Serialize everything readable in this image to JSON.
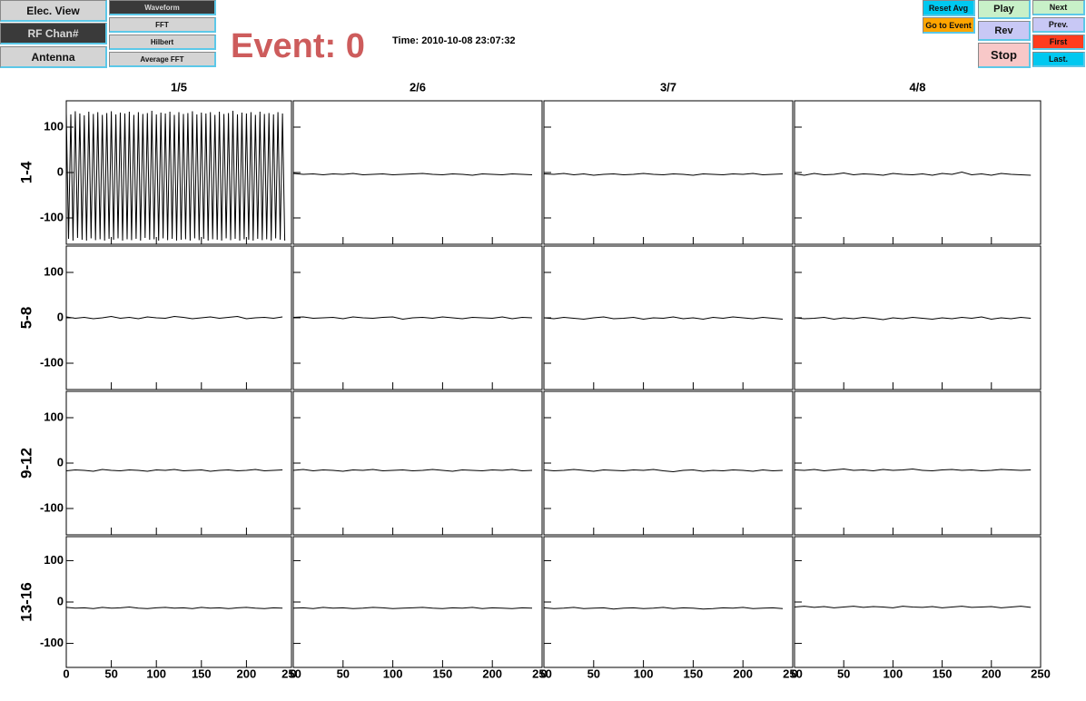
{
  "controls": {
    "view_buttons": [
      "Elec. View",
      "RF Chan#",
      "Antenna"
    ],
    "plot_buttons": [
      "Waveform",
      "FFT",
      "Hilbert",
      "Average FFT"
    ],
    "event_label": "Event: 0",
    "time_label": "Time: 2010-10-08 23:07:32",
    "avg_buttons": [
      "Reset Avg",
      "Go to Event"
    ],
    "play_buttons": [
      "Play",
      "Rev",
      "Stop"
    ],
    "nav_buttons": [
      "Next",
      "Prev.",
      "First",
      "Last."
    ]
  },
  "grid": {
    "columns": [
      "1/5",
      "2/6",
      "3/7",
      "4/8"
    ],
    "rows": [
      "1-4",
      "5-8",
      "9-12",
      "13-16"
    ]
  },
  "chart_data": [
    {
      "type": "line",
      "xlim": [
        0,
        250
      ],
      "ylim": [
        -158,
        158
      ],
      "xticks": [
        0,
        50,
        100,
        150,
        200,
        250
      ],
      "yticks": [
        -100,
        0,
        100
      ],
      "x": [
        0,
        2.5,
        5,
        7.5,
        10,
        12.5,
        15,
        17.5,
        20,
        22.5,
        25,
        27.5,
        30,
        32.5,
        35,
        37.5,
        40,
        42.5,
        45,
        47.5,
        50,
        52.5,
        55,
        57.5,
        60,
        62.5,
        65,
        67.5,
        70,
        72.5,
        75,
        77.5,
        80,
        82.5,
        85,
        87.5,
        90,
        92.5,
        95,
        97.5,
        100,
        102.5,
        105,
        107.5,
        110,
        112.5,
        115,
        117.5,
        120,
        122.5,
        125,
        127.5,
        130,
        132.5,
        135,
        137.5,
        140,
        142.5,
        145,
        147.5,
        150,
        152.5,
        155,
        157.5,
        160,
        162.5,
        165,
        167.5,
        170,
        172.5,
        175,
        177.5,
        180,
        182.5,
        185,
        187.5,
        190,
        192.5,
        195,
        197.5,
        200,
        202.5,
        205,
        207.5,
        210,
        212.5,
        215,
        217.5,
        220,
        222.5,
        225,
        227.5,
        230,
        232.5,
        235,
        237.5,
        240,
        242.5
      ],
      "values": [
        132,
        -146,
        128,
        -150,
        135,
        -144,
        130,
        -148,
        126,
        -150,
        134,
        -145,
        129,
        -149,
        133,
        -147,
        127,
        -150,
        131,
        -146,
        135,
        -148,
        128,
        -145,
        132,
        -150,
        130,
        -147,
        134,
        -149,
        127,
        -146,
        133,
        -150,
        129,
        -144,
        131,
        -148,
        136,
        -147,
        128,
        -150,
        132,
        -145,
        130,
        -149,
        134,
        -146,
        127,
        -150,
        133,
        -148,
        129,
        -147,
        131,
        -150,
        135,
        -145,
        128,
        -149,
        132,
        -146,
        130,
        -150,
        133,
        -147,
        127,
        -148,
        134,
        -150,
        129,
        -145,
        131,
        -149,
        136,
        -146,
        128,
        -150,
        132,
        -147,
        130,
        -148,
        133,
        -150,
        127,
        -146,
        134,
        -149,
        129,
        -147,
        131,
        -150,
        128,
        -145,
        133,
        -148,
        130,
        -150
      ]
    },
    {
      "type": "line",
      "xlim": [
        0,
        250
      ],
      "ylim": [
        -158,
        158
      ],
      "xticks": [
        0,
        50,
        100,
        150,
        200,
        250
      ],
      "yticks": [
        -100,
        0,
        100
      ],
      "x": [
        0,
        10,
        20,
        30,
        40,
        50,
        60,
        70,
        80,
        90,
        100,
        110,
        120,
        130,
        140,
        150,
        160,
        170,
        180,
        190,
        200,
        210,
        220,
        230,
        240
      ],
      "values": [
        -2,
        -4,
        -3,
        -5,
        -3,
        -4,
        -2,
        -5,
        -4,
        -3,
        -5,
        -4,
        -3,
        -2,
        -4,
        -5,
        -3,
        -4,
        -6,
        -3,
        -4,
        -5,
        -3,
        -4,
        -5
      ]
    },
    {
      "type": "line",
      "xlim": [
        0,
        250
      ],
      "ylim": [
        -158,
        158
      ],
      "xticks": [
        0,
        50,
        100,
        150,
        200,
        250
      ],
      "yticks": [
        -100,
        0,
        100
      ],
      "x": [
        0,
        10,
        20,
        30,
        40,
        50,
        60,
        70,
        80,
        90,
        100,
        110,
        120,
        130,
        140,
        150,
        160,
        170,
        180,
        190,
        200,
        210,
        220,
        230,
        240
      ],
      "values": [
        -3,
        -4,
        -2,
        -5,
        -3,
        -6,
        -4,
        -3,
        -5,
        -4,
        -2,
        -4,
        -5,
        -3,
        -4,
        -6,
        -3,
        -4,
        -5,
        -3,
        -4,
        -2,
        -5,
        -4,
        -3
      ]
    },
    {
      "type": "line",
      "xlim": [
        0,
        250
      ],
      "ylim": [
        -158,
        158
      ],
      "xticks": [
        0,
        50,
        100,
        150,
        200,
        250
      ],
      "yticks": [
        -100,
        0,
        100
      ],
      "x": [
        0,
        10,
        20,
        30,
        40,
        50,
        60,
        70,
        80,
        90,
        100,
        110,
        120,
        130,
        140,
        150,
        160,
        170,
        180,
        190,
        200,
        210,
        220,
        230,
        240
      ],
      "values": [
        -3,
        -6,
        -2,
        -5,
        -4,
        -1,
        -5,
        -3,
        -4,
        -6,
        -2,
        -4,
        -5,
        -3,
        -6,
        -2,
        -4,
        1,
        -5,
        -3,
        -6,
        -2,
        -4,
        -5,
        -6
      ]
    },
    {
      "type": "line",
      "xlim": [
        0,
        250
      ],
      "ylim": [
        -158,
        158
      ],
      "xticks": [
        0,
        50,
        100,
        150,
        200,
        250
      ],
      "yticks": [
        -100,
        0,
        100
      ],
      "x": [
        0,
        10,
        20,
        30,
        40,
        50,
        60,
        70,
        80,
        90,
        100,
        110,
        120,
        130,
        140,
        150,
        160,
        170,
        180,
        190,
        200,
        210,
        220,
        230,
        240
      ],
      "values": [
        2,
        -1,
        1,
        -2,
        0,
        3,
        -1,
        1,
        -2,
        2,
        0,
        -1,
        3,
        1,
        -2,
        0,
        2,
        -1,
        1,
        3,
        -2,
        0,
        1,
        -1,
        2
      ]
    },
    {
      "type": "line",
      "xlim": [
        0,
        250
      ],
      "ylim": [
        -158,
        158
      ],
      "xticks": [
        0,
        50,
        100,
        150,
        200,
        250
      ],
      "yticks": [
        -100,
        0,
        100
      ],
      "x": [
        0,
        10,
        20,
        30,
        40,
        50,
        60,
        70,
        80,
        90,
        100,
        110,
        120,
        130,
        140,
        150,
        160,
        170,
        180,
        190,
        200,
        210,
        220,
        230,
        240
      ],
      "values": [
        1,
        2,
        -1,
        0,
        1,
        -2,
        2,
        0,
        -1,
        1,
        2,
        -3,
        0,
        1,
        -1,
        2,
        0,
        -2,
        1,
        0,
        -1,
        2,
        -2,
        1,
        0
      ]
    },
    {
      "type": "line",
      "xlim": [
        0,
        250
      ],
      "ylim": [
        -158,
        158
      ],
      "xticks": [
        0,
        50,
        100,
        150,
        200,
        250
      ],
      "yticks": [
        -100,
        0,
        100
      ],
      "x": [
        0,
        10,
        20,
        30,
        40,
        50,
        60,
        70,
        80,
        90,
        100,
        110,
        120,
        130,
        140,
        150,
        160,
        170,
        180,
        190,
        200,
        210,
        220,
        230,
        240
      ],
      "values": [
        0,
        -2,
        1,
        -1,
        -3,
        0,
        2,
        -2,
        -1,
        1,
        -3,
        0,
        -1,
        2,
        -2,
        0,
        -3,
        1,
        -1,
        2,
        0,
        -2,
        1,
        -1,
        -3
      ]
    },
    {
      "type": "line",
      "xlim": [
        0,
        250
      ],
      "ylim": [
        -158,
        158
      ],
      "xticks": [
        0,
        50,
        100,
        150,
        200,
        250
      ],
      "yticks": [
        -100,
        0,
        100
      ],
      "x": [
        0,
        10,
        20,
        30,
        40,
        50,
        60,
        70,
        80,
        90,
        100,
        110,
        120,
        130,
        140,
        150,
        160,
        170,
        180,
        190,
        200,
        210,
        220,
        230,
        240
      ],
      "values": [
        0,
        -2,
        -1,
        1,
        -3,
        0,
        -2,
        1,
        -1,
        -4,
        0,
        -2,
        1,
        -1,
        -3,
        0,
        -2,
        1,
        -1,
        2,
        -3,
        0,
        -2,
        1,
        -1
      ]
    },
    {
      "type": "line",
      "xlim": [
        0,
        250
      ],
      "ylim": [
        -158,
        158
      ],
      "xticks": [
        0,
        50,
        100,
        150,
        200,
        250
      ],
      "yticks": [
        -100,
        0,
        100
      ],
      "x": [
        0,
        10,
        20,
        30,
        40,
        50,
        60,
        70,
        80,
        90,
        100,
        110,
        120,
        130,
        140,
        150,
        160,
        170,
        180,
        190,
        200,
        210,
        220,
        230,
        240
      ],
      "values": [
        -17,
        -15,
        -16,
        -18,
        -14,
        -16,
        -17,
        -15,
        -16,
        -18,
        -15,
        -16,
        -14,
        -17,
        -16,
        -15,
        -18,
        -16,
        -15,
        -17,
        -16,
        -14,
        -17,
        -16,
        -15
      ]
    },
    {
      "type": "line",
      "xlim": [
        0,
        250
      ],
      "ylim": [
        -158,
        158
      ],
      "xticks": [
        0,
        50,
        100,
        150,
        200,
        250
      ],
      "yticks": [
        -100,
        0,
        100
      ],
      "x": [
        0,
        10,
        20,
        30,
        40,
        50,
        60,
        70,
        80,
        90,
        100,
        110,
        120,
        130,
        140,
        150,
        160,
        170,
        180,
        190,
        200,
        210,
        220,
        230,
        240
      ],
      "values": [
        -16,
        -14,
        -17,
        -15,
        -16,
        -18,
        -15,
        -16,
        -14,
        -17,
        -16,
        -15,
        -17,
        -16,
        -14,
        -16,
        -18,
        -15,
        -16,
        -17,
        -15,
        -16,
        -14,
        -17,
        -16
      ]
    },
    {
      "type": "line",
      "xlim": [
        0,
        250
      ],
      "ylim": [
        -158,
        158
      ],
      "xticks": [
        0,
        50,
        100,
        150,
        200,
        250
      ],
      "yticks": [
        -100,
        0,
        100
      ],
      "x": [
        0,
        10,
        20,
        30,
        40,
        50,
        60,
        70,
        80,
        90,
        100,
        110,
        120,
        130,
        140,
        150,
        160,
        170,
        180,
        190,
        200,
        210,
        220,
        230,
        240
      ],
      "values": [
        -15,
        -17,
        -16,
        -14,
        -16,
        -18,
        -15,
        -16,
        -17,
        -15,
        -16,
        -14,
        -17,
        -19,
        -16,
        -15,
        -18,
        -16,
        -17,
        -15,
        -16,
        -18,
        -15,
        -17,
        -16
      ]
    },
    {
      "type": "line",
      "xlim": [
        0,
        250
      ],
      "ylim": [
        -158,
        158
      ],
      "xticks": [
        0,
        50,
        100,
        150,
        200,
        250
      ],
      "yticks": [
        -100,
        0,
        100
      ],
      "x": [
        0,
        10,
        20,
        30,
        40,
        50,
        60,
        70,
        80,
        90,
        100,
        110,
        120,
        130,
        140,
        150,
        160,
        170,
        180,
        190,
        200,
        210,
        220,
        230,
        240
      ],
      "values": [
        -15,
        -16,
        -14,
        -17,
        -15,
        -13,
        -16,
        -15,
        -17,
        -14,
        -16,
        -15,
        -13,
        -16,
        -17,
        -15,
        -14,
        -16,
        -15,
        -17,
        -16,
        -14,
        -15,
        -16,
        -15
      ]
    },
    {
      "type": "line",
      "xlim": [
        0,
        250
      ],
      "ylim": [
        -158,
        158
      ],
      "xticks": [
        0,
        50,
        100,
        150,
        200,
        250
      ],
      "yticks": [
        -100,
        0,
        100
      ],
      "x": [
        0,
        10,
        20,
        30,
        40,
        50,
        60,
        70,
        80,
        90,
        100,
        110,
        120,
        130,
        140,
        150,
        160,
        170,
        180,
        190,
        200,
        210,
        220,
        230,
        240
      ],
      "values": [
        -13,
        -15,
        -14,
        -16,
        -13,
        -15,
        -14,
        -12,
        -15,
        -16,
        -14,
        -13,
        -15,
        -14,
        -16,
        -13,
        -15,
        -14,
        -16,
        -14,
        -13,
        -15,
        -16,
        -14,
        -15
      ]
    },
    {
      "type": "line",
      "xlim": [
        0,
        250
      ],
      "ylim": [
        -158,
        158
      ],
      "xticks": [
        0,
        50,
        100,
        150,
        200,
        250
      ],
      "yticks": [
        -100,
        0,
        100
      ],
      "x": [
        0,
        10,
        20,
        30,
        40,
        50,
        60,
        70,
        80,
        90,
        100,
        110,
        120,
        130,
        140,
        150,
        160,
        170,
        180,
        190,
        200,
        210,
        220,
        230,
        240
      ],
      "values": [
        -15,
        -14,
        -16,
        -13,
        -15,
        -14,
        -16,
        -15,
        -13,
        -14,
        -16,
        -15,
        -14,
        -13,
        -15,
        -16,
        -14,
        -15,
        -13,
        -16,
        -14,
        -15,
        -16,
        -14,
        -15
      ]
    },
    {
      "type": "line",
      "xlim": [
        0,
        250
      ],
      "ylim": [
        -158,
        158
      ],
      "xticks": [
        0,
        50,
        100,
        150,
        200,
        250
      ],
      "yticks": [
        -100,
        0,
        100
      ],
      "x": [
        0,
        10,
        20,
        30,
        40,
        50,
        60,
        70,
        80,
        90,
        100,
        110,
        120,
        130,
        140,
        150,
        160,
        170,
        180,
        190,
        200,
        210,
        220,
        230,
        240
      ],
      "values": [
        -14,
        -16,
        -15,
        -13,
        -16,
        -15,
        -14,
        -17,
        -15,
        -14,
        -16,
        -15,
        -13,
        -16,
        -14,
        -15,
        -17,
        -16,
        -14,
        -15,
        -13,
        -16,
        -15,
        -14,
        -16
      ]
    },
    {
      "type": "line",
      "xlim": [
        0,
        250
      ],
      "ylim": [
        -158,
        158
      ],
      "xticks": [
        0,
        50,
        100,
        150,
        200,
        250
      ],
      "yticks": [
        -100,
        0,
        100
      ],
      "x": [
        0,
        10,
        20,
        30,
        40,
        50,
        60,
        70,
        80,
        90,
        100,
        110,
        120,
        130,
        140,
        150,
        160,
        170,
        180,
        190,
        200,
        210,
        220,
        230,
        240
      ],
      "values": [
        -12,
        -10,
        -13,
        -11,
        -14,
        -12,
        -10,
        -13,
        -11,
        -12,
        -14,
        -10,
        -12,
        -13,
        -11,
        -14,
        -12,
        -10,
        -13,
        -12,
        -11,
        -14,
        -12,
        -10,
        -13
      ]
    }
  ]
}
